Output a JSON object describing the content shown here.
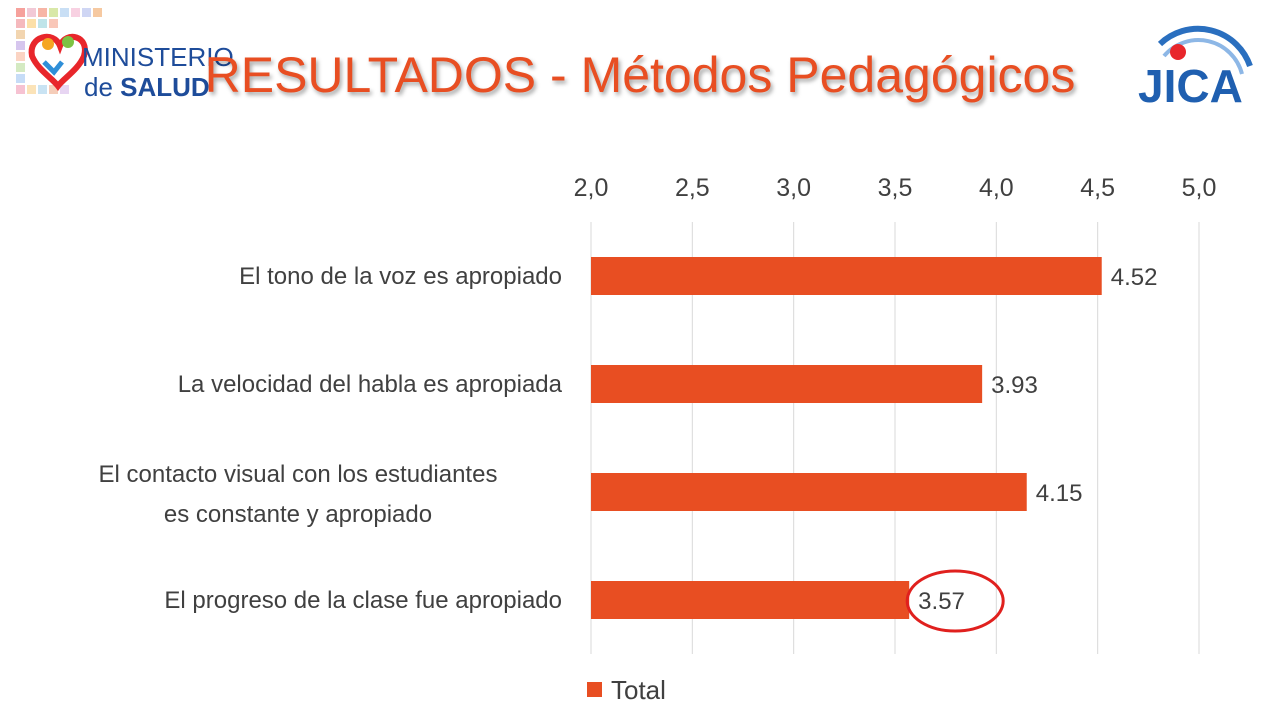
{
  "slide": {
    "title": "RESULTADOS - Métodos Pedagógicos",
    "logo_left": {
      "line1": "MINISTERIO",
      "line2a": "de ",
      "line2b": "SALUD"
    },
    "logo_right": {
      "text": "JICA"
    }
  },
  "chart_data": {
    "type": "bar",
    "orientation": "horizontal",
    "categories": [
      "El tono de la voz es apropiado",
      "La velocidad del habla es apropiada",
      "El contacto visual con los estudiantes es constante y apropiado",
      "El progreso de la clase fue apropiado"
    ],
    "series": [
      {
        "name": "Total",
        "values": [
          4.52,
          3.93,
          4.15,
          3.57
        ],
        "color": "#e84e22"
      }
    ],
    "data_labels": [
      "4.52",
      "3.93",
      "4.15",
      "3.57"
    ],
    "xlim": [
      2.0,
      5.0
    ],
    "x_ticks": [
      "2,0",
      "2,5",
      "3,0",
      "3,5",
      "4,0",
      "4,5",
      "5,0"
    ],
    "x_axis_position": "top",
    "grid": true,
    "legend": "bottom-center",
    "highlight": {
      "category_index": 3,
      "shape": "circle",
      "color": "#e0201e"
    }
  }
}
